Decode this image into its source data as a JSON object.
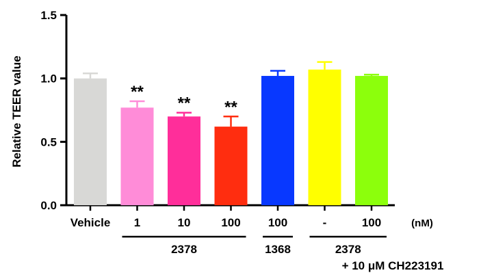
{
  "chart_data": {
    "type": "bar",
    "ylabel": "Relative TEER value",
    "ylim": [
      0,
      1.5
    ],
    "y_ticks": [
      "0.0",
      "0.5",
      "1.0",
      "1.5"
    ],
    "y_tick_values": [
      0,
      0.5,
      1.0,
      1.5
    ],
    "categories": [
      "Vehicle",
      "1",
      "10",
      "100",
      "100",
      "-",
      "100"
    ],
    "unit_label": "(nM)",
    "values": [
      1.0,
      0.77,
      0.7,
      0.62,
      1.02,
      1.07,
      1.02
    ],
    "errors": [
      0.04,
      0.05,
      0.03,
      0.08,
      0.04,
      0.06,
      0.01
    ],
    "colors": [
      "#d8d8d6",
      "#ff8cd8",
      "#ff2e9a",
      "#ff2d0f",
      "#0838ff",
      "#ffff00",
      "#8cff0c"
    ],
    "significance": [
      "",
      "**",
      "**",
      "**",
      "",
      "",
      ""
    ],
    "groups": [
      {
        "label": "2378",
        "from": 1,
        "to": 3
      },
      {
        "label": "1368",
        "from": 4,
        "to": 4
      },
      {
        "label": "2378",
        "from": 5,
        "to": 6
      }
    ],
    "group_footnote": "+ 10 μM CH223191"
  }
}
